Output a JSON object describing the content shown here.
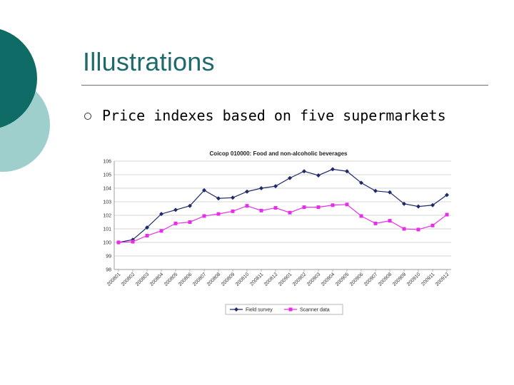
{
  "slide": {
    "title": "Illustrations",
    "bullet": "Price indexes based on five supermarkets"
  },
  "colors": {
    "teal_dark": "#0e6b66",
    "teal_light": "#9fcfcd",
    "field_survey": "#1f2a6b",
    "scanner_data": "#e62ee6"
  },
  "chart_data": {
    "type": "line",
    "title": "Coicop 010000: Food and non-alcoholic beverages",
    "categories": [
      "200801",
      "200802",
      "200803",
      "200804",
      "200805",
      "200806",
      "200807",
      "200808",
      "200809",
      "200810",
      "200811",
      "200812",
      "200901",
      "200902",
      "200903",
      "200904",
      "200905",
      "200906",
      "200907",
      "200908",
      "200909",
      "200910",
      "200911",
      "200912"
    ],
    "series": [
      {
        "name": "Field survey",
        "color": "#1f2a6b",
        "marker": "diamond",
        "values": [
          100.0,
          100.2,
          101.1,
          102.1,
          102.4,
          102.7,
          103.85,
          103.25,
          103.3,
          103.75,
          104.0,
          104.15,
          104.75,
          105.25,
          104.95,
          105.4,
          105.25,
          104.4,
          103.8,
          103.7,
          102.85,
          102.65,
          102.75,
          103.5
        ]
      },
      {
        "name": "Scanner data",
        "color": "#e62ee6",
        "marker": "square",
        "values": [
          100.0,
          100.05,
          100.5,
          100.85,
          101.4,
          101.5,
          101.95,
          102.1,
          102.3,
          102.7,
          102.35,
          102.55,
          102.2,
          102.6,
          102.6,
          102.75,
          102.8,
          101.95,
          101.4,
          101.6,
          101.0,
          100.95,
          101.25,
          102.05
        ]
      }
    ],
    "ylim": [
      98,
      106
    ],
    "yticks": [
      98,
      99,
      100,
      101,
      102,
      103,
      104,
      105,
      106
    ],
    "grid": true,
    "legend": "bottom"
  }
}
